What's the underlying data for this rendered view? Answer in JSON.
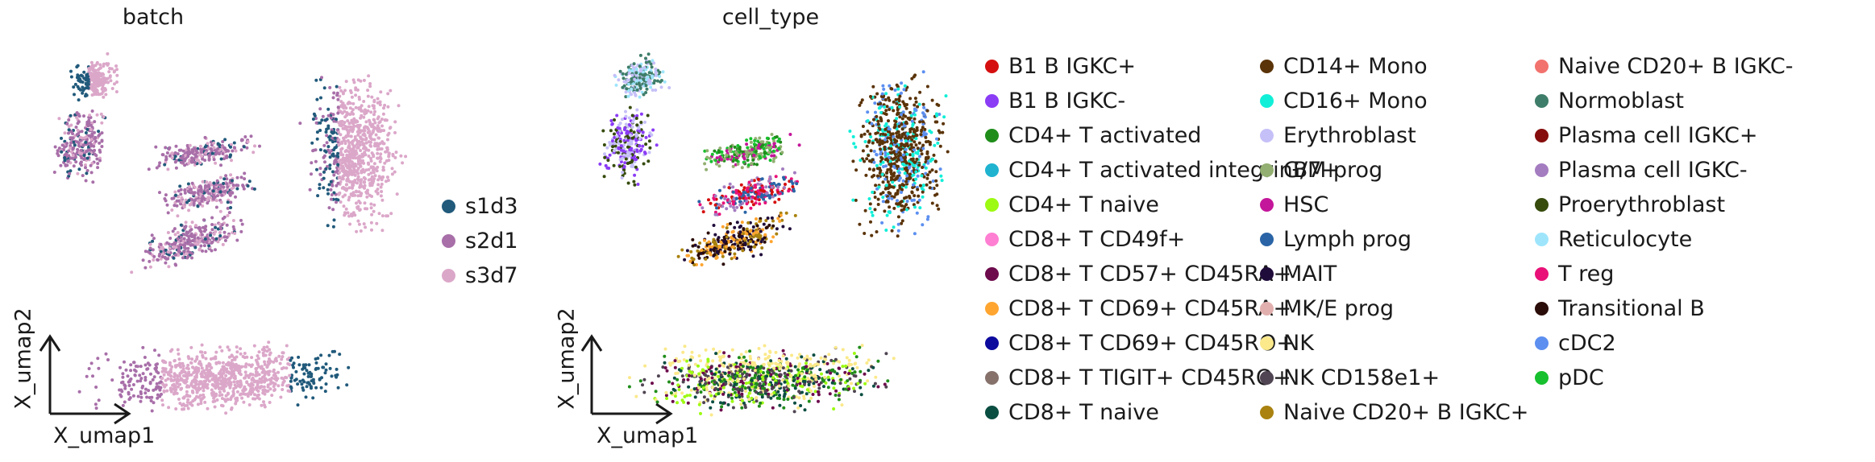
{
  "panels": [
    {
      "title": "batch",
      "xlabel": "X_umap1",
      "ylabel": "X_umap2"
    },
    {
      "title": "cell_type",
      "xlabel": "X_umap1",
      "ylabel": "X_umap2"
    }
  ],
  "legend_batch": [
    {
      "label": "s1d3",
      "color": "#215a7b"
    },
    {
      "label": "s2d1",
      "color": "#a86fa9"
    },
    {
      "label": "s3d7",
      "color": "#dba7c9"
    }
  ],
  "legend_cell_type": [
    {
      "label": "B1 B IGKC+",
      "color": "#d50f0f"
    },
    {
      "label": "B1 B IGKC-",
      "color": "#8b3cf5"
    },
    {
      "label": "CD4+ T activated",
      "color": "#208d1b"
    },
    {
      "label": "CD4+ T activated integrinB7+",
      "color": "#1fb3d0"
    },
    {
      "label": "CD4+ T naive",
      "color": "#9dfa12"
    },
    {
      "label": "CD8+ T CD49f+",
      "color": "#ff7fd2"
    },
    {
      "label": "CD8+ T CD57+ CD45RA+",
      "color": "#6d0b4c"
    },
    {
      "label": "CD8+ T CD69+ CD45RA+",
      "color": "#ffa530"
    },
    {
      "label": "CD8+ T CD69+ CD45RO+",
      "color": "#0d0a9e"
    },
    {
      "label": "CD8+ T TIGIT+ CD45RO+",
      "color": "#86726b"
    },
    {
      "label": "CD8+ T naive",
      "color": "#0a4d41"
    },
    {
      "label": "CD14+ Mono",
      "color": "#5a3308"
    },
    {
      "label": "CD16+ Mono",
      "color": "#12efd8"
    },
    {
      "label": "Erythroblast",
      "color": "#c6c0f8"
    },
    {
      "label": "G/M prog",
      "color": "#93af72"
    },
    {
      "label": "HSC",
      "color": "#c4169a"
    },
    {
      "label": "Lymph prog",
      "color": "#2a64a6"
    },
    {
      "label": "MAIT",
      "color": "#200c3a"
    },
    {
      "label": "MK/E prog",
      "color": "#e1b0ae"
    },
    {
      "label": "NK",
      "color": "#fbe98b"
    },
    {
      "label": "NK CD158e1+",
      "color": "#504553"
    },
    {
      "label": "Naive CD20+ B IGKC+",
      "color": "#a9820f"
    },
    {
      "label": "Naive CD20+ B IGKC-",
      "color": "#f2726d"
    },
    {
      "label": "Normoblast",
      "color": "#3e7d69"
    },
    {
      "label": "Plasma cell IGKC+",
      "color": "#860d0d"
    },
    {
      "label": "Plasma cell IGKC-",
      "color": "#a47cc0"
    },
    {
      "label": "Proerythroblast",
      "color": "#364b0c"
    },
    {
      "label": "Reticulocyte",
      "color": "#9ee5fc"
    },
    {
      "label": "T reg",
      "color": "#e91178"
    },
    {
      "label": "Transitional B",
      "color": "#2a0c08"
    },
    {
      "label": "cDC2",
      "color": "#5c8ff0"
    },
    {
      "label": "pDC",
      "color": "#17c02e"
    }
  ],
  "chart_data": [
    {
      "type": "scatter",
      "title": "batch",
      "xlabel": "X_umap1",
      "ylabel": "X_umap2",
      "grid": false,
      "legend_placement": "right",
      "series": [
        {
          "name": "s1d3",
          "color": "#215a7b"
        },
        {
          "name": "s2d1",
          "color": "#a86fa9"
        },
        {
          "name": "s3d7",
          "color": "#dba7c9"
        }
      ]
    },
    {
      "type": "scatter",
      "title": "cell_type",
      "xlabel": "X_umap1",
      "ylabel": "X_umap2",
      "grid": false,
      "legend_placement": "right",
      "legend_columns": 3,
      "series_names_from": "legend_cell_type"
    }
  ]
}
